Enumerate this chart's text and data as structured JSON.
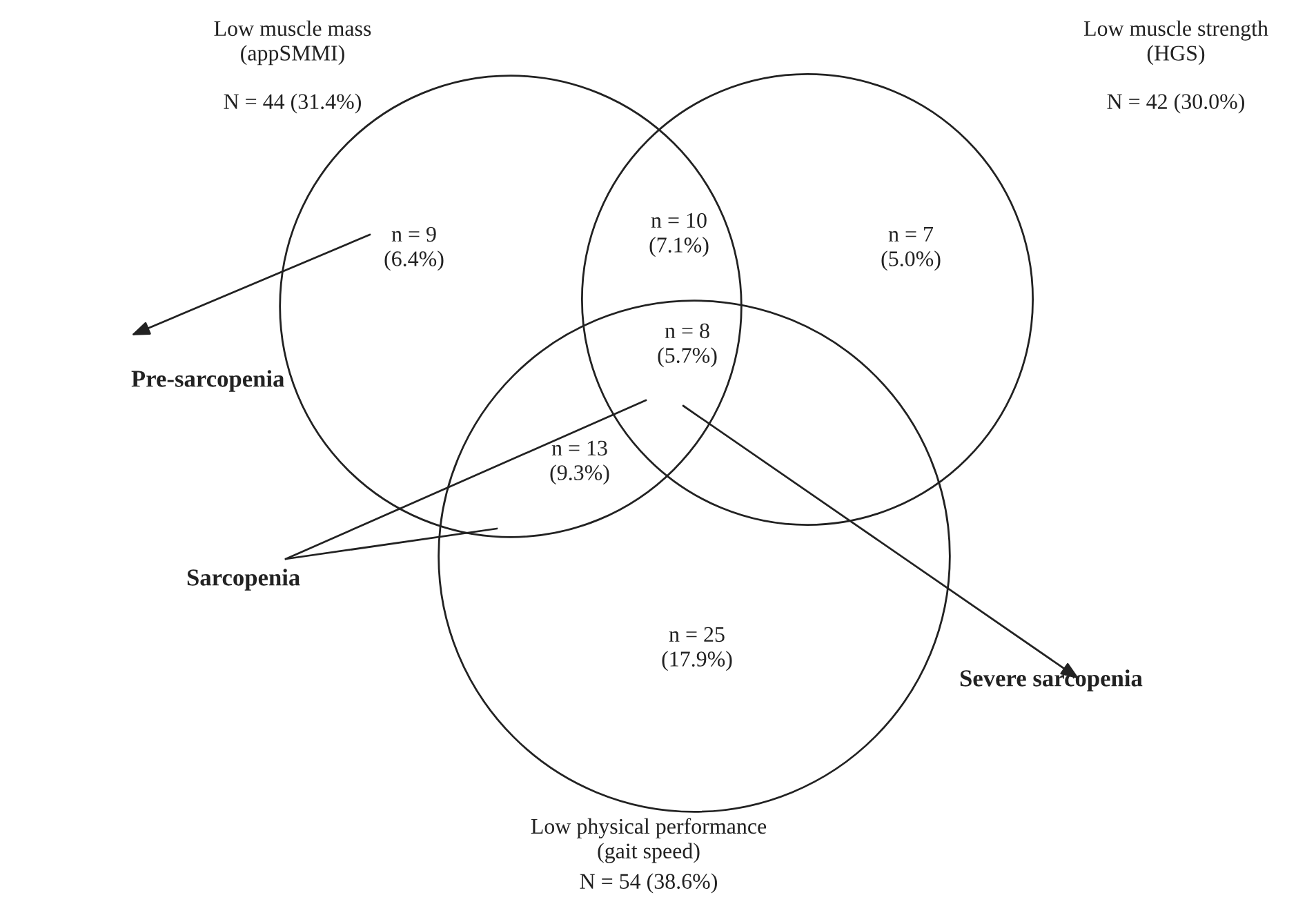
{
  "chart_data": {
    "type": "other",
    "categories": [
      "Low muscle mass\n(appSMMI)",
      "Low muscle strength\n(HGS)",
      "Low physical performance\n(gait speed)"
    ],
    "values": [
      44,
      42,
      54
    ],
    "value_labels": [
      "N = 44 (31.4%)",
      "N = 42 (30.0%)",
      "N = 54 (38.6%)"
    ],
    "annotations": [
      "n = 9\n(6.4%)",
      "n = 10\n(7.1%)",
      "n = 7\n(5.0%)",
      "n = 8\n(5.7%)",
      "n = 13\n(9.3%)",
      "n = 25\n(17.9%)",
      "Pre-sarcopenia",
      "Sarcopenia",
      "Severe sarcopenia"
    ]
  }
}
